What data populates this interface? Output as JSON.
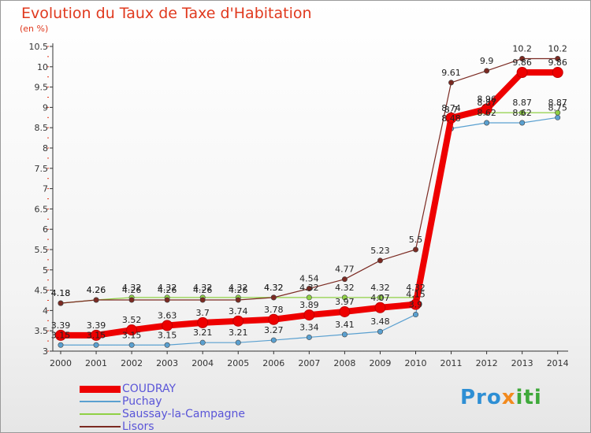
{
  "header": {
    "title": "Evolution du Taux de Taxe d'Habitation",
    "unit": "(en %)"
  },
  "logo": {
    "part1": "Pro",
    "part2": "x",
    "part3": "iti"
  },
  "chart_data": {
    "type": "line",
    "title": "Evolution du Taux de Taxe d'Habitation",
    "subtitle": "(en %)",
    "xlabel": "",
    "ylabel": "",
    "categories": [
      "2000",
      "2001",
      "2002",
      "2003",
      "2004",
      "2005",
      "2006",
      "2007",
      "2008",
      "2009",
      "2010",
      "2011",
      "2012",
      "2013",
      "2014"
    ],
    "ylim": [
      3,
      10.5
    ],
    "yticks": [
      3,
      3.5,
      4,
      4.5,
      5,
      5.5,
      6,
      6.5,
      7,
      7.5,
      8,
      8.5,
      9,
      9.5,
      10,
      10.5
    ],
    "ytick_labels": [
      "3",
      "3.5",
      "4",
      "4.5",
      "5",
      "5.5",
      "6",
      "6.5",
      "7",
      "7.5",
      "8",
      "8.5",
      "9",
      "9.5",
      "10",
      "10.5"
    ],
    "grid": false,
    "legend_position": "bottom-left",
    "series": [
      {
        "name": "COUDRAY",
        "color": "#ee0000",
        "values": [
          3.39,
          3.39,
          3.52,
          3.63,
          3.7,
          3.74,
          3.78,
          3.89,
          3.97,
          4.07,
          4.15,
          8.74,
          8.96,
          9.86,
          9.86
        ],
        "labels": [
          "3.39",
          "3.39",
          "3.52",
          "3.63",
          "3.7",
          "3.74",
          "3.78",
          "3.89",
          "3.97",
          "4.07",
          "4.15",
          "8.74",
          "8.96",
          "9.86",
          "9.86"
        ]
      },
      {
        "name": "Puchay",
        "color": "#5aa0d0",
        "values": [
          3.15,
          3.15,
          3.15,
          3.15,
          3.21,
          3.21,
          3.27,
          3.34,
          3.41,
          3.48,
          3.9,
          8.48,
          8.62,
          8.62,
          8.75
        ],
        "labels": [
          "3.15",
          "3.15",
          "3.15",
          "3.15",
          "3.21",
          "3.21",
          "3.27",
          "3.34",
          "3.41",
          "3.48",
          "3.9",
          "8.48",
          "8.62",
          "8.62",
          "8.75"
        ]
      },
      {
        "name": "Saussay-la-Campagne",
        "color": "#8fd045",
        "values": [
          4.18,
          4.26,
          4.32,
          4.32,
          4.32,
          4.32,
          4.32,
          4.32,
          4.32,
          4.32,
          4.32,
          8.7,
          8.87,
          8.87,
          8.87
        ],
        "labels": [
          "4.18",
          "4.26",
          "4.32",
          "4.32",
          "4.32",
          "4.32",
          "4.32",
          "4.32",
          "4.32",
          "4.32",
          "4.32",
          "8.7",
          "8.87",
          "8.87",
          "8.87"
        ]
      },
      {
        "name": "Lisors",
        "color": "#7b2a22",
        "values": [
          4.18,
          4.26,
          4.26,
          4.26,
          4.26,
          4.26,
          4.32,
          4.54,
          4.77,
          5.23,
          5.5,
          9.61,
          9.9,
          10.2,
          10.2
        ],
        "labels": [
          "4.18",
          "4.26",
          "4.26",
          "4.26",
          "4.26",
          "4.26",
          "4.32",
          "4.54",
          "4.77",
          "5.23",
          "5.5",
          "9.61",
          "9.9",
          "10.2",
          "10.2"
        ]
      }
    ]
  }
}
